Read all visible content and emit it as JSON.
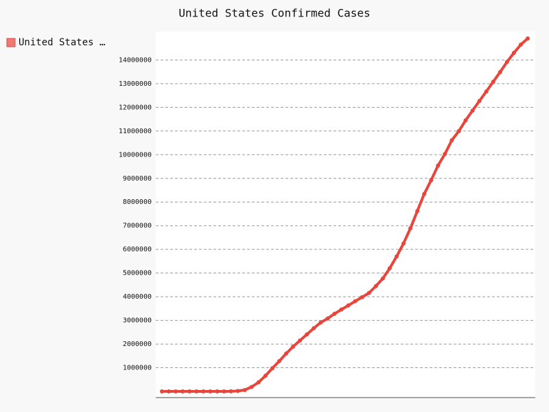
{
  "chart_data": {
    "type": "line",
    "title": "United States Confirmed Cases",
    "series": [
      {
        "name": "United States …",
        "color": "#e8453c",
        "values": [
          1,
          1,
          5,
          8,
          12,
          15,
          53,
          88,
          500,
          1600,
          6000,
          20000,
          60000,
          190000,
          385000,
          660000,
          980000,
          1280000,
          1600000,
          1890000,
          2150000,
          2410000,
          2670000,
          2910000,
          3080000,
          3280000,
          3460000,
          3630000,
          3810000,
          3980000,
          4160000,
          4450000,
          4770000,
          5200000,
          5700000,
          6250000,
          6890000,
          7620000,
          8340000,
          8920000,
          9540000,
          10030000,
          10610000,
          10990000,
          11450000,
          11860000,
          12270000,
          12670000,
          13080000,
          13490000,
          13920000,
          14300000,
          14650000,
          14910000
        ]
      }
    ],
    "ylim": [
      -260000,
      15200000
    ],
    "yticks": [
      1000000,
      2000000,
      3000000,
      4000000,
      5000000,
      6000000,
      7000000,
      8000000,
      9000000,
      10000000,
      11000000,
      12000000,
      13000000,
      14000000
    ],
    "grid": true,
    "legend": "left"
  }
}
